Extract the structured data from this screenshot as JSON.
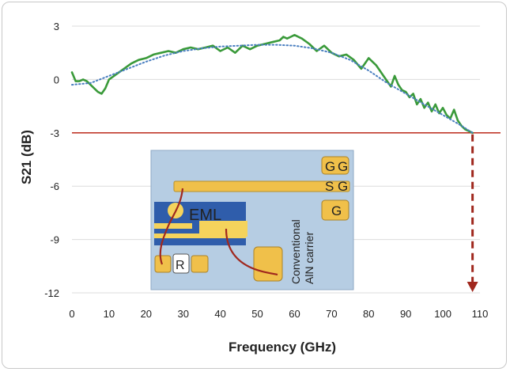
{
  "chart_data": {
    "type": "line",
    "xlabel": "Frequency  (GHz)",
    "ylabel": "S21  (dB)",
    "xlim": [
      0,
      110
    ],
    "ylim": [
      -12,
      3
    ],
    "x_ticks": [
      0,
      10,
      20,
      30,
      40,
      50,
      60,
      70,
      80,
      90,
      100,
      110
    ],
    "y_ticks": [
      3,
      0,
      -3,
      -6,
      -9,
      -12
    ],
    "grid": "horizontal",
    "reference_line": {
      "y": -3,
      "color": "#c0392b"
    },
    "cutoff_marker": {
      "x": 108,
      "y_from": -3,
      "y_to": -12,
      "color": "#a0281e",
      "style": "dashed-arrow"
    },
    "series": [
      {
        "style": "solid",
        "color": "#3a9a3a",
        "x": [
          0,
          1,
          2,
          3,
          4,
          5,
          6,
          7,
          8,
          9,
          10,
          12,
          14,
          16,
          18,
          20,
          22,
          24,
          26,
          28,
          30,
          32,
          34,
          36,
          38,
          40,
          42,
          44,
          46,
          48,
          50,
          52,
          54,
          56,
          57,
          58,
          59,
          60,
          62,
          64,
          66,
          68,
          70,
          72,
          74,
          76,
          78,
          80,
          82,
          84,
          86,
          87,
          88,
          89,
          90,
          91,
          92,
          93,
          94,
          95,
          96,
          97,
          98,
          99,
          100,
          101,
          102,
          103,
          104,
          105,
          106,
          107,
          108
        ],
        "y": [
          0.4,
          -0.1,
          -0.1,
          0.0,
          -0.1,
          -0.3,
          -0.5,
          -0.7,
          -0.8,
          -0.5,
          0.0,
          0.3,
          0.6,
          0.9,
          1.1,
          1.2,
          1.4,
          1.5,
          1.6,
          1.5,
          1.7,
          1.8,
          1.7,
          1.8,
          1.9,
          1.6,
          1.8,
          1.5,
          1.9,
          1.7,
          1.9,
          2.0,
          2.1,
          2.2,
          2.4,
          2.3,
          2.4,
          2.5,
          2.3,
          2.0,
          1.6,
          1.9,
          1.5,
          1.3,
          1.4,
          1.1,
          0.6,
          1.2,
          0.8,
          0.2,
          -0.4,
          0.2,
          -0.3,
          -0.6,
          -0.7,
          -1.0,
          -0.8,
          -1.4,
          -1.1,
          -1.6,
          -1.3,
          -1.8,
          -1.4,
          -1.9,
          -1.6,
          -2.0,
          -2.2,
          -1.7,
          -2.3,
          -2.6,
          -2.8,
          -2.9,
          -3.0
        ]
      },
      {
        "style": "dotted",
        "color": "#4a7fc0",
        "x": [
          0,
          5,
          10,
          15,
          20,
          25,
          30,
          35,
          40,
          45,
          50,
          55,
          60,
          65,
          70,
          75,
          80,
          85,
          90,
          95,
          100,
          105,
          108
        ],
        "y": [
          -0.3,
          -0.2,
          0.2,
          0.6,
          1.0,
          1.35,
          1.6,
          1.75,
          1.85,
          1.9,
          1.95,
          1.95,
          1.9,
          1.75,
          1.5,
          1.1,
          0.5,
          -0.2,
          -0.8,
          -1.4,
          -2.0,
          -2.6,
          -3.0
        ]
      }
    ],
    "inset": {
      "eml_label": "EML",
      "r_label": "R",
      "gsg_top": [
        "G",
        "S",
        "G"
      ],
      "gsg_bottom": "G",
      "carrier_label_lines": [
        "Conventional",
        "AlN carrier"
      ],
      "colors": {
        "carrier": "#b6cde3",
        "eml_block": "#2f5dab",
        "pad": "#f0c04a",
        "pad_light": "#f5d35c",
        "wire": "#a0281e"
      }
    }
  }
}
